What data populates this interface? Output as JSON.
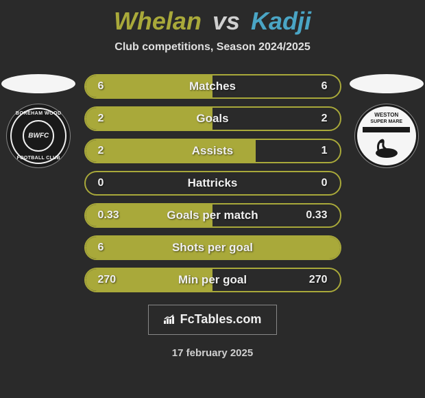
{
  "colors": {
    "left_accent": "#a9a93a",
    "right_accent": "#4aa5c5",
    "background": "#2a2a2a",
    "text_light": "#f0f0f0"
  },
  "title": {
    "left": "Whelan",
    "vs": "vs",
    "right": "Kadji"
  },
  "subtitle": "Club competitions, Season 2024/2025",
  "club_left": {
    "top_arc": "BOREHAM WOOD",
    "center": "BWFC",
    "bottom_arc": "FOOTBALL CLUB"
  },
  "club_right": {
    "line1": "WESTON",
    "line2": "SUPER MARE"
  },
  "stats": [
    {
      "label": "Matches",
      "left_val": "6",
      "right_val": "6",
      "left_fill_pct": 50,
      "right_fill_pct": 50,
      "left_color": "#a9a93a",
      "right_color": "transparent"
    },
    {
      "label": "Goals",
      "left_val": "2",
      "right_val": "2",
      "left_fill_pct": 50,
      "right_fill_pct": 50,
      "left_color": "#a9a93a",
      "right_color": "transparent"
    },
    {
      "label": "Assists",
      "left_val": "2",
      "right_val": "1",
      "left_fill_pct": 67,
      "right_fill_pct": 33,
      "left_color": "#a9a93a",
      "right_color": "transparent"
    },
    {
      "label": "Hattricks",
      "left_val": "0",
      "right_val": "0",
      "left_fill_pct": 0,
      "right_fill_pct": 0,
      "left_color": "transparent",
      "right_color": "transparent"
    },
    {
      "label": "Goals per match",
      "left_val": "0.33",
      "right_val": "0.33",
      "left_fill_pct": 50,
      "right_fill_pct": 50,
      "left_color": "#a9a93a",
      "right_color": "transparent"
    },
    {
      "label": "Shots per goal",
      "left_val": "6",
      "right_val": "",
      "left_fill_pct": 100,
      "right_fill_pct": 0,
      "left_color": "#a9a93a",
      "right_color": "transparent"
    },
    {
      "label": "Min per goal",
      "left_val": "270",
      "right_val": "270",
      "left_fill_pct": 50,
      "right_fill_pct": 50,
      "left_color": "#a9a93a",
      "right_color": "transparent"
    }
  ],
  "footer_brand": "FcTables.com",
  "date": "17 february 2025"
}
